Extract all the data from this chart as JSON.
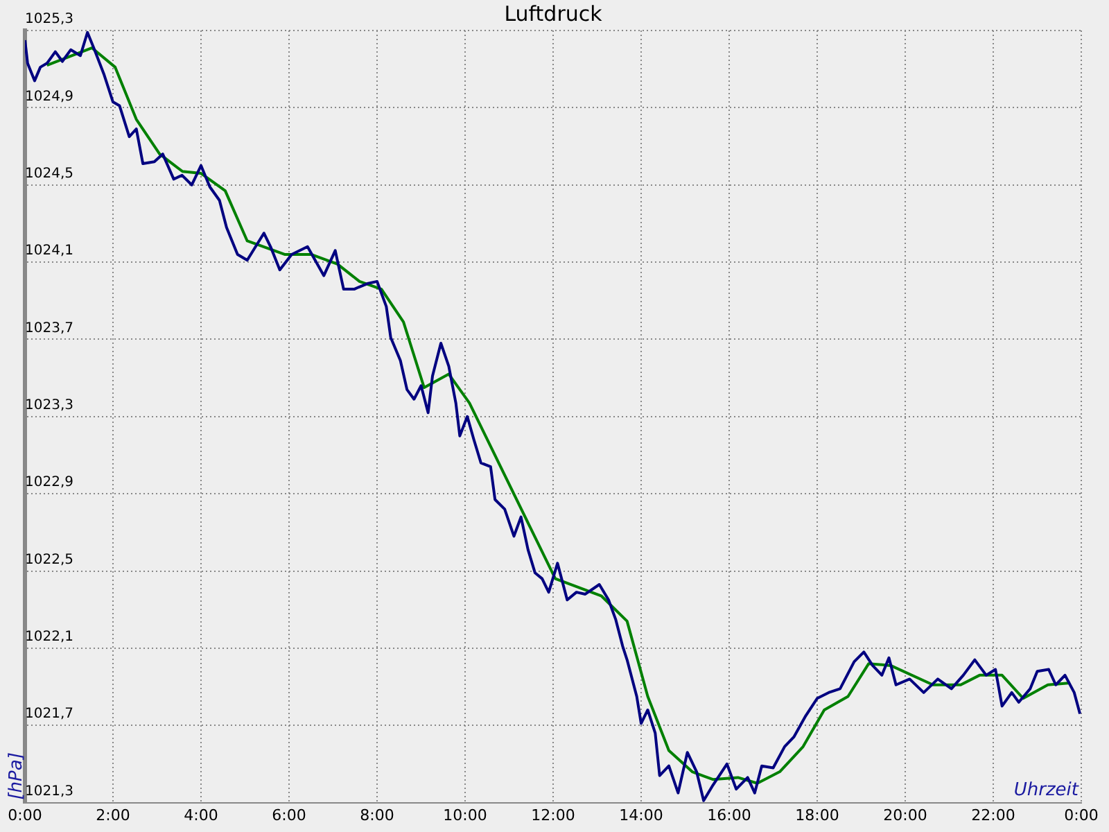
{
  "chart_data": {
    "type": "line",
    "title": "Luftdruck",
    "xlabel": "Uhrzeit",
    "ylabel": "[hPa]",
    "xlim": [
      0,
      24
    ],
    "xticks": [
      {
        "value": 0,
        "label": "0:00"
      },
      {
        "value": 2,
        "label": "2:00"
      },
      {
        "value": 4,
        "label": "4:00"
      },
      {
        "value": 6,
        "label": "6:00"
      },
      {
        "value": 8,
        "label": "8:00"
      },
      {
        "value": 10,
        "label": "10:00"
      },
      {
        "value": 12,
        "label": "12:00"
      },
      {
        "value": 14,
        "label": "14:00"
      },
      {
        "value": 16,
        "label": "16:00"
      },
      {
        "value": 18,
        "label": "18:00"
      },
      {
        "value": 20,
        "label": "20:00"
      },
      {
        "value": 22,
        "label": "22:00"
      },
      {
        "value": 24,
        "label": "0:00"
      }
    ],
    "ylim": [
      1021.3,
      1025.3
    ],
    "yticks": [
      {
        "value": 1021.3,
        "label": "1021,3"
      },
      {
        "value": 1021.7,
        "label": "1021,7"
      },
      {
        "value": 1022.1,
        "label": "1022,1"
      },
      {
        "value": 1022.5,
        "label": "1022,5"
      },
      {
        "value": 1022.9,
        "label": "1022,9"
      },
      {
        "value": 1023.3,
        "label": "1023,3"
      },
      {
        "value": 1023.7,
        "label": "1023,7"
      },
      {
        "value": 1024.1,
        "label": "1024,1"
      },
      {
        "value": 1024.5,
        "label": "1024,5"
      },
      {
        "value": 1024.9,
        "label": "1024,9"
      },
      {
        "value": 1025.3,
        "label": "1025,3"
      }
    ],
    "grid": true,
    "legend": false,
    "marker": "none",
    "line_style": "solid",
    "series": [
      {
        "color": "#000080",
        "x": [
          0,
          0.06,
          0.22,
          0.35,
          0.5,
          0.69,
          0.85,
          1.04,
          1.26,
          1.42,
          1.58,
          1.8,
          2.0,
          2.15,
          2.37,
          2.53,
          2.68,
          2.94,
          3.13,
          3.38,
          3.57,
          3.79,
          4.0,
          4.2,
          4.42,
          4.58,
          4.83,
          5.05,
          5.43,
          5.58,
          5.79,
          6.06,
          6.42,
          6.79,
          7.05,
          7.24,
          7.48,
          7.58,
          7.8,
          8.0,
          8.21,
          8.31,
          8.53,
          8.68,
          8.84,
          9.0,
          9.16,
          9.26,
          9.45,
          9.63,
          9.79,
          9.88,
          10.05,
          10.2,
          10.36,
          10.58,
          10.68,
          10.9,
          11.11,
          11.27,
          11.43,
          11.59,
          11.75,
          11.9,
          12.1,
          12.32,
          12.53,
          12.73,
          13.05,
          13.26,
          13.42,
          13.58,
          13.68,
          13.9,
          14.0,
          14.15,
          14.32,
          14.42,
          14.63,
          14.84,
          15.05,
          15.26,
          15.42,
          15.63,
          15.95,
          16.16,
          16.42,
          16.58,
          16.74,
          17.0,
          17.26,
          17.47,
          17.74,
          18.0,
          18.26,
          18.52,
          18.68,
          18.84,
          19.06,
          19.26,
          19.47,
          19.63,
          19.79,
          20.1,
          20.42,
          20.74,
          21.05,
          21.32,
          21.58,
          21.84,
          22.05,
          22.2,
          22.42,
          22.58,
          22.84,
          23.0,
          23.26,
          23.42,
          23.63,
          23.84,
          23.97
        ],
        "values": [
          1025.25,
          1025.13,
          1025.04,
          1025.11,
          1025.13,
          1025.19,
          1025.14,
          1025.2,
          1025.17,
          1025.29,
          1025.2,
          1025.07,
          1024.93,
          1024.91,
          1024.75,
          1024.79,
          1024.61,
          1024.62,
          1024.66,
          1024.53,
          1024.55,
          1024.5,
          1024.6,
          1024.49,
          1024.42,
          1024.28,
          1024.14,
          1024.11,
          1024.25,
          1024.18,
          1024.06,
          1024.14,
          1024.18,
          1024.03,
          1024.16,
          1023.96,
          1023.96,
          1023.97,
          1023.99,
          1024.0,
          1023.87,
          1023.71,
          1023.59,
          1023.44,
          1023.39,
          1023.46,
          1023.32,
          1023.51,
          1023.68,
          1023.56,
          1023.37,
          1023.2,
          1023.3,
          1023.18,
          1023.06,
          1023.04,
          1022.87,
          1022.82,
          1022.68,
          1022.78,
          1022.61,
          1022.49,
          1022.46,
          1022.39,
          1022.54,
          1022.35,
          1022.39,
          1022.38,
          1022.43,
          1022.35,
          1022.25,
          1022.11,
          1022.04,
          1021.85,
          1021.71,
          1021.78,
          1021.66,
          1021.44,
          1021.49,
          1021.35,
          1021.56,
          1021.46,
          1021.31,
          1021.39,
          1021.5,
          1021.37,
          1021.43,
          1021.35,
          1021.49,
          1021.48,
          1021.59,
          1021.64,
          1021.75,
          1021.84,
          1021.87,
          1021.89,
          1021.96,
          1022.03,
          1022.08,
          1022.01,
          1021.96,
          1022.05,
          1021.91,
          1021.94,
          1021.87,
          1021.94,
          1021.89,
          1021.96,
          1022.04,
          1021.96,
          1021.99,
          1021.8,
          1021.87,
          1021.82,
          1021.89,
          1021.98,
          1021.99,
          1021.91,
          1021.96,
          1021.87,
          1021.76
        ]
      },
      {
        "color": "#008000",
        "x": [
          0.5,
          1.52,
          2.05,
          2.53,
          3.06,
          3.58,
          4.0,
          4.55,
          5.05,
          5.9,
          6.5,
          7.1,
          7.6,
          8.1,
          8.6,
          9.07,
          9.63,
          10.1,
          12.05,
          13.1,
          13.68,
          14.15,
          14.63,
          15.16,
          15.63,
          16.2,
          16.64,
          17.15,
          17.68,
          18.16,
          18.7,
          19.17,
          19.67,
          20.63,
          21.26,
          21.69,
          22.2,
          22.68,
          23.24,
          23.75
        ],
        "values": [
          1025.12,
          1025.21,
          1025.11,
          1024.84,
          1024.66,
          1024.57,
          1024.56,
          1024.47,
          1024.21,
          1024.14,
          1024.14,
          1024.09,
          1024.0,
          1023.96,
          1023.79,
          1023.45,
          1023.52,
          1023.37,
          1022.46,
          1022.37,
          1022.24,
          1021.85,
          1021.57,
          1021.46,
          1021.42,
          1021.43,
          1021.4,
          1021.46,
          1021.59,
          1021.78,
          1021.85,
          1022.02,
          1022.01,
          1021.91,
          1021.91,
          1021.96,
          1021.96,
          1021.84,
          1021.91,
          1021.92
        ]
      }
    ]
  }
}
